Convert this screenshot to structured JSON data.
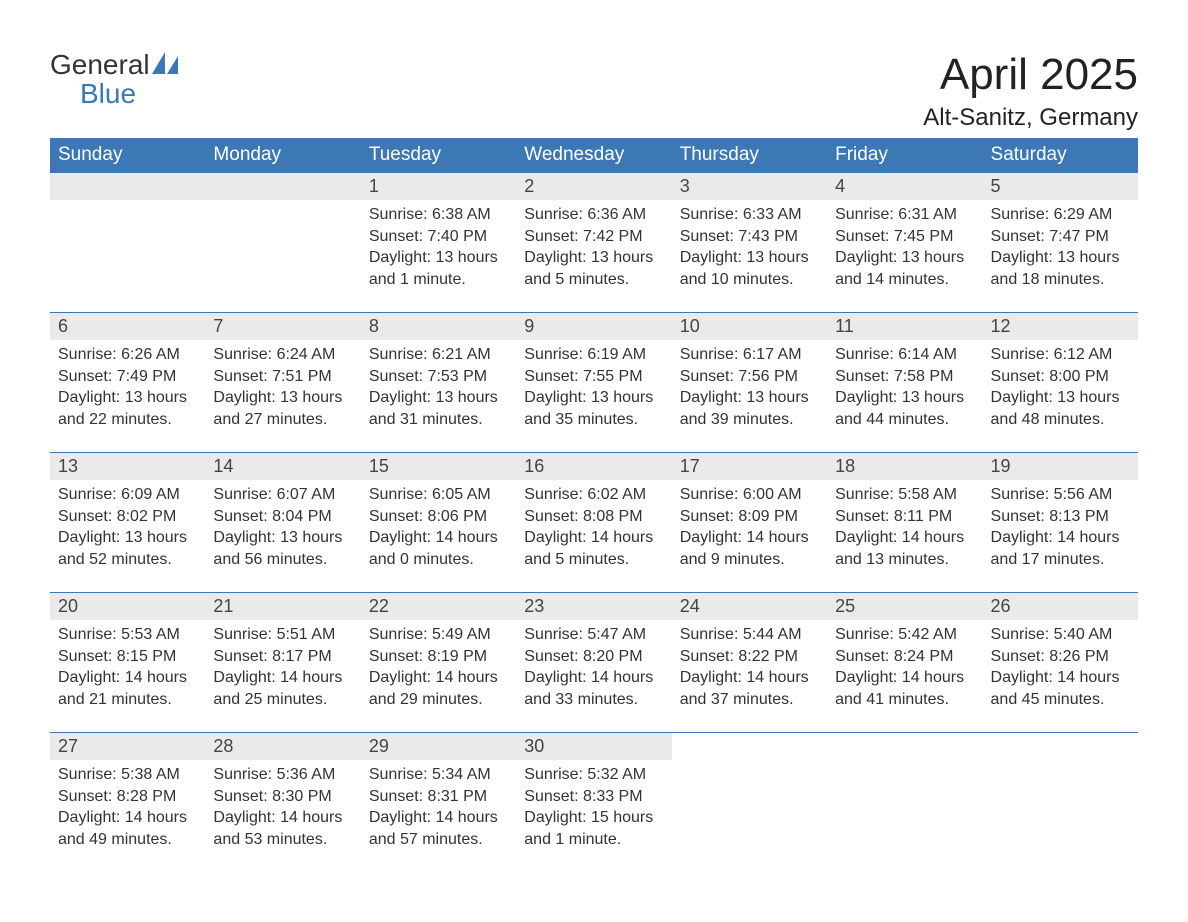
{
  "brand": {
    "line1": "General",
    "line2": "Blue",
    "icon_color": "#3b78b5"
  },
  "title": "April 2025",
  "location": "Alt-Sanitz, Germany",
  "header_bg": "#3b78b5",
  "day_number_bg": "#eaeaea",
  "weekdays": [
    "Sunday",
    "Monday",
    "Tuesday",
    "Wednesday",
    "Thursday",
    "Friday",
    "Saturday"
  ],
  "weeks": [
    [
      null,
      null,
      {
        "day": "1",
        "sunrise": "Sunrise: 6:38 AM",
        "sunset": "Sunset: 7:40 PM",
        "daylight": "Daylight: 13 hours and 1 minute."
      },
      {
        "day": "2",
        "sunrise": "Sunrise: 6:36 AM",
        "sunset": "Sunset: 7:42 PM",
        "daylight": "Daylight: 13 hours and 5 minutes."
      },
      {
        "day": "3",
        "sunrise": "Sunrise: 6:33 AM",
        "sunset": "Sunset: 7:43 PM",
        "daylight": "Daylight: 13 hours and 10 minutes."
      },
      {
        "day": "4",
        "sunrise": "Sunrise: 6:31 AM",
        "sunset": "Sunset: 7:45 PM",
        "daylight": "Daylight: 13 hours and 14 minutes."
      },
      {
        "day": "5",
        "sunrise": "Sunrise: 6:29 AM",
        "sunset": "Sunset: 7:47 PM",
        "daylight": "Daylight: 13 hours and 18 minutes."
      }
    ],
    [
      {
        "day": "6",
        "sunrise": "Sunrise: 6:26 AM",
        "sunset": "Sunset: 7:49 PM",
        "daylight": "Daylight: 13 hours and 22 minutes."
      },
      {
        "day": "7",
        "sunrise": "Sunrise: 6:24 AM",
        "sunset": "Sunset: 7:51 PM",
        "daylight": "Daylight: 13 hours and 27 minutes."
      },
      {
        "day": "8",
        "sunrise": "Sunrise: 6:21 AM",
        "sunset": "Sunset: 7:53 PM",
        "daylight": "Daylight: 13 hours and 31 minutes."
      },
      {
        "day": "9",
        "sunrise": "Sunrise: 6:19 AM",
        "sunset": "Sunset: 7:55 PM",
        "daylight": "Daylight: 13 hours and 35 minutes."
      },
      {
        "day": "10",
        "sunrise": "Sunrise: 6:17 AM",
        "sunset": "Sunset: 7:56 PM",
        "daylight": "Daylight: 13 hours and 39 minutes."
      },
      {
        "day": "11",
        "sunrise": "Sunrise: 6:14 AM",
        "sunset": "Sunset: 7:58 PM",
        "daylight": "Daylight: 13 hours and 44 minutes."
      },
      {
        "day": "12",
        "sunrise": "Sunrise: 6:12 AM",
        "sunset": "Sunset: 8:00 PM",
        "daylight": "Daylight: 13 hours and 48 minutes."
      }
    ],
    [
      {
        "day": "13",
        "sunrise": "Sunrise: 6:09 AM",
        "sunset": "Sunset: 8:02 PM",
        "daylight": "Daylight: 13 hours and 52 minutes."
      },
      {
        "day": "14",
        "sunrise": "Sunrise: 6:07 AM",
        "sunset": "Sunset: 8:04 PM",
        "daylight": "Daylight: 13 hours and 56 minutes."
      },
      {
        "day": "15",
        "sunrise": "Sunrise: 6:05 AM",
        "sunset": "Sunset: 8:06 PM",
        "daylight": "Daylight: 14 hours and 0 minutes."
      },
      {
        "day": "16",
        "sunrise": "Sunrise: 6:02 AM",
        "sunset": "Sunset: 8:08 PM",
        "daylight": "Daylight: 14 hours and 5 minutes."
      },
      {
        "day": "17",
        "sunrise": "Sunrise: 6:00 AM",
        "sunset": "Sunset: 8:09 PM",
        "daylight": "Daylight: 14 hours and 9 minutes."
      },
      {
        "day": "18",
        "sunrise": "Sunrise: 5:58 AM",
        "sunset": "Sunset: 8:11 PM",
        "daylight": "Daylight: 14 hours and 13 minutes."
      },
      {
        "day": "19",
        "sunrise": "Sunrise: 5:56 AM",
        "sunset": "Sunset: 8:13 PM",
        "daylight": "Daylight: 14 hours and 17 minutes."
      }
    ],
    [
      {
        "day": "20",
        "sunrise": "Sunrise: 5:53 AM",
        "sunset": "Sunset: 8:15 PM",
        "daylight": "Daylight: 14 hours and 21 minutes."
      },
      {
        "day": "21",
        "sunrise": "Sunrise: 5:51 AM",
        "sunset": "Sunset: 8:17 PM",
        "daylight": "Daylight: 14 hours and 25 minutes."
      },
      {
        "day": "22",
        "sunrise": "Sunrise: 5:49 AM",
        "sunset": "Sunset: 8:19 PM",
        "daylight": "Daylight: 14 hours and 29 minutes."
      },
      {
        "day": "23",
        "sunrise": "Sunrise: 5:47 AM",
        "sunset": "Sunset: 8:20 PM",
        "daylight": "Daylight: 14 hours and 33 minutes."
      },
      {
        "day": "24",
        "sunrise": "Sunrise: 5:44 AM",
        "sunset": "Sunset: 8:22 PM",
        "daylight": "Daylight: 14 hours and 37 minutes."
      },
      {
        "day": "25",
        "sunrise": "Sunrise: 5:42 AM",
        "sunset": "Sunset: 8:24 PM",
        "daylight": "Daylight: 14 hours and 41 minutes."
      },
      {
        "day": "26",
        "sunrise": "Sunrise: 5:40 AM",
        "sunset": "Sunset: 8:26 PM",
        "daylight": "Daylight: 14 hours and 45 minutes."
      }
    ],
    [
      {
        "day": "27",
        "sunrise": "Sunrise: 5:38 AM",
        "sunset": "Sunset: 8:28 PM",
        "daylight": "Daylight: 14 hours and 49 minutes."
      },
      {
        "day": "28",
        "sunrise": "Sunrise: 5:36 AM",
        "sunset": "Sunset: 8:30 PM",
        "daylight": "Daylight: 14 hours and 53 minutes."
      },
      {
        "day": "29",
        "sunrise": "Sunrise: 5:34 AM",
        "sunset": "Sunset: 8:31 PM",
        "daylight": "Daylight: 14 hours and 57 minutes."
      },
      {
        "day": "30",
        "sunrise": "Sunrise: 5:32 AM",
        "sunset": "Sunset: 8:33 PM",
        "daylight": "Daylight: 15 hours and 1 minute."
      },
      null,
      null,
      null
    ]
  ]
}
